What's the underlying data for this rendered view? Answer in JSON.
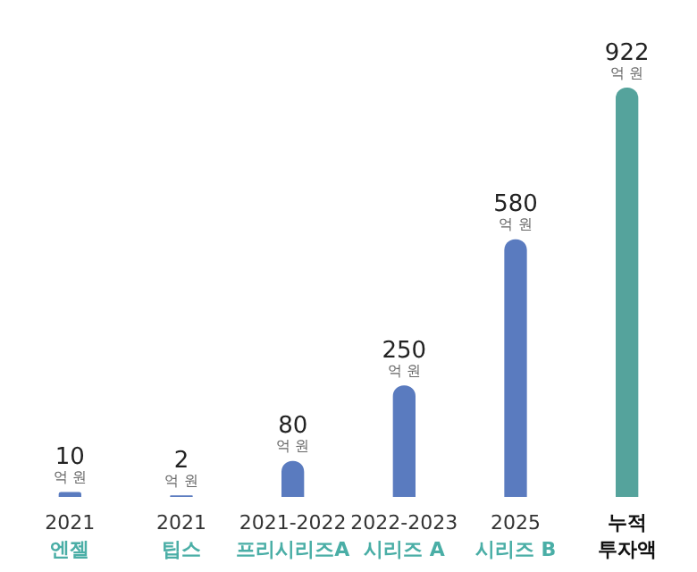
{
  "chart_data": {
    "type": "bar",
    "categories": [
      "2021\n엔젤",
      "2021\n팁스",
      "2021-2022\n프리시리즈A",
      "2022-2023\n시리즈 A",
      "2025\n시리즈 B",
      "누적\n투자액"
    ],
    "values": [
      10,
      2,
      80,
      250,
      580,
      922
    ],
    "colors": [
      "#5a7bbf",
      "#5a7bbf",
      "#5a7bbf",
      "#5a7bbf",
      "#5a7bbf",
      "#55a39c"
    ],
    "value_labels": [
      "10\n억 원",
      "2\n억 원",
      "80\n억 원",
      "250\n억 원",
      "580\n억 원",
      "922\n억 원"
    ],
    "grid": false,
    "legend": false,
    "tick_labels": false
  }
}
